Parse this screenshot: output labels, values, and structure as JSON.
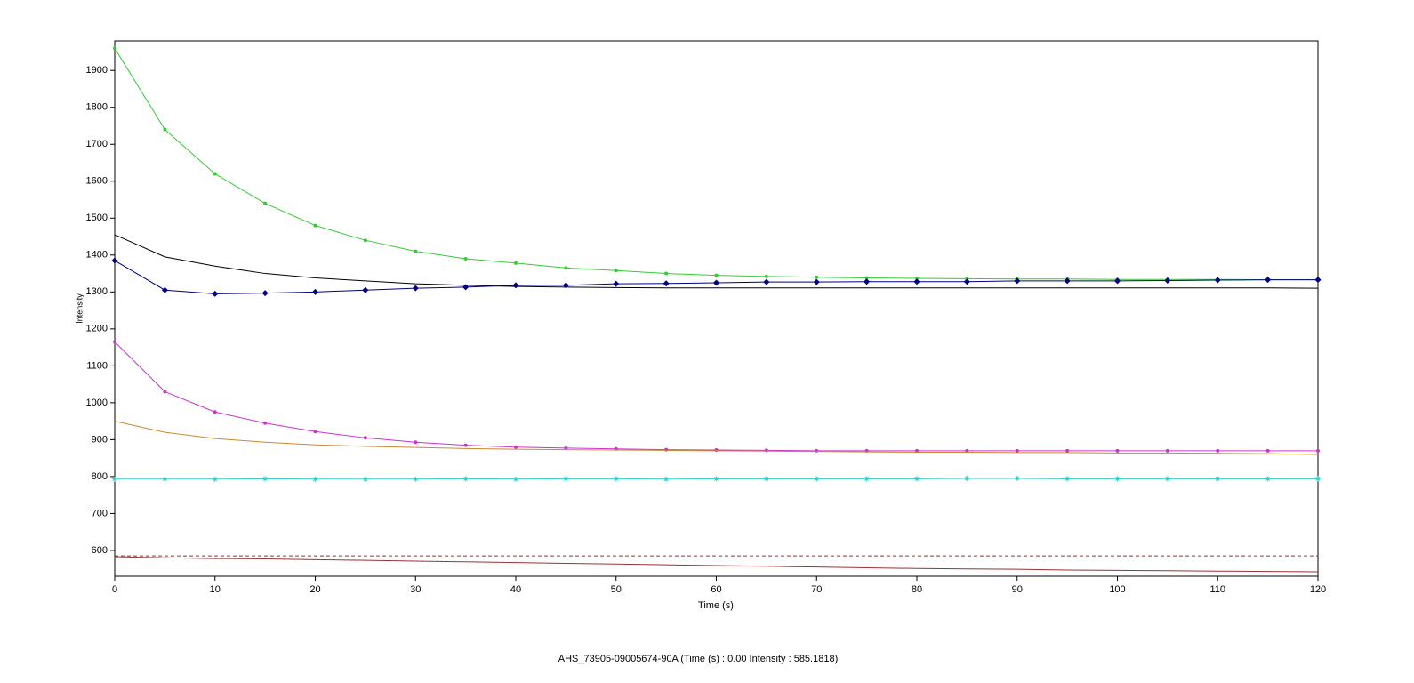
{
  "chart_data": {
    "type": "line",
    "xlabel": "Time (s)",
    "ylabel": "Intensity",
    "status": "AHS_73905-09005674-90A (Time (s) : 0.00  Intensity : 585.1818)",
    "x": [
      0,
      5,
      10,
      15,
      20,
      25,
      30,
      35,
      40,
      45,
      50,
      55,
      60,
      65,
      70,
      75,
      80,
      85,
      90,
      95,
      100,
      105,
      110,
      115,
      120
    ],
    "series": [
      {
        "color": "#33cc33",
        "marker": "dot",
        "values": [
          1960,
          1740,
          1620,
          1540,
          1480,
          1440,
          1410,
          1390,
          1378,
          1365,
          1358,
          1350,
          1345,
          1342,
          1340,
          1338,
          1337,
          1336,
          1335,
          1335,
          1334,
          1334,
          1334,
          1333,
          1333
        ]
      },
      {
        "color": "#000000",
        "marker": "none",
        "values": [
          1455,
          1395,
          1370,
          1350,
          1338,
          1330,
          1322,
          1318,
          1315,
          1313,
          1312,
          1311,
          1311,
          1311,
          1311,
          1311,
          1311,
          1311,
          1311,
          1311,
          1311,
          1311,
          1311,
          1311,
          1310
        ]
      },
      {
        "color": "#000080",
        "marker": "diamond",
        "values": [
          1385,
          1305,
          1295,
          1297,
          1300,
          1305,
          1310,
          1313,
          1318,
          1318,
          1322,
          1323,
          1325,
          1327,
          1327,
          1328,
          1328,
          1328,
          1330,
          1330,
          1330,
          1331,
          1332,
          1333,
          1333
        ]
      },
      {
        "color": "#cc33cc",
        "marker": "dot",
        "values": [
          1165,
          1030,
          975,
          945,
          922,
          905,
          893,
          885,
          880,
          877,
          875,
          873,
          872,
          871,
          870,
          870,
          870,
          870,
          870,
          870,
          870,
          870,
          870,
          870,
          870
        ]
      },
      {
        "color": "#cc8833",
        "marker": "none",
        "values": [
          950,
          920,
          903,
          893,
          886,
          882,
          879,
          876,
          874,
          873,
          872,
          871,
          870,
          869,
          868,
          867,
          866,
          866,
          865,
          865,
          864,
          864,
          863,
          862,
          860
        ]
      },
      {
        "color": "#33cccc",
        "marker": "star",
        "values": [
          793,
          793,
          793,
          794,
          793,
          793,
          793,
          794,
          793,
          794,
          794,
          793,
          794,
          794,
          794,
          794,
          794,
          795,
          795,
          794,
          794,
          794,
          794,
          794,
          794
        ]
      },
      {
        "color": "#993333",
        "marker": "none",
        "values": [
          583,
          580,
          578,
          577,
          575,
          573,
          571,
          569,
          567,
          565,
          563,
          561,
          559,
          557,
          555,
          553,
          551,
          550,
          549,
          547,
          546,
          545,
          544,
          543,
          542
        ]
      }
    ],
    "hline": {
      "value": 585,
      "color": "#993333",
      "dashed": true
    },
    "xlim": [
      0,
      120
    ],
    "xticks": [
      0,
      10,
      20,
      30,
      40,
      50,
      60,
      70,
      80,
      90,
      100,
      110,
      120
    ],
    "ylim": [
      530,
      1980
    ],
    "yticks": [
      600,
      700,
      800,
      900,
      1000,
      1100,
      1200,
      1300,
      1400,
      1500,
      1600,
      1700,
      1800,
      1900
    ]
  }
}
